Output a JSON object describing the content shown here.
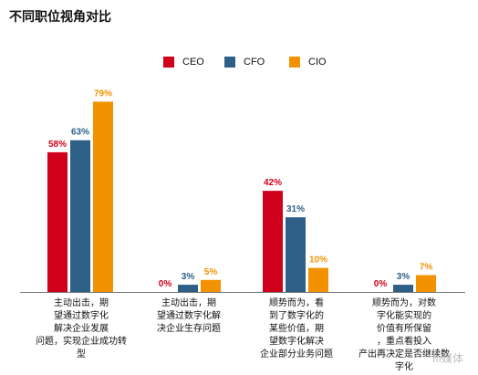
{
  "page_title": "不同职位视角对比",
  "watermark": "iii媒体",
  "chart_data": {
    "type": "bar",
    "title": "",
    "categories": [
      "主动出击，期望通过数字化解决企业发展问题，实现企业成功转型",
      "主动出击，期望通过数字化解决企业生存问题",
      "顺势而为，看到了数字化的某些价值，期望数字化解决企业部分业务问题",
      "顺势而为，对数字化能实现的价值有所保留，重点看投入产出再决定是否继续数字化"
    ],
    "series": [
      {
        "name": "CEO",
        "color": "#d0021b",
        "values": [
          58,
          0,
          42,
          0
        ],
        "labels": [
          "58%",
          "0%",
          "42%",
          "0%"
        ]
      },
      {
        "name": "CFO",
        "color": "#2e5f87",
        "values": [
          63,
          3,
          31,
          3
        ],
        "labels": [
          "63%",
          "3%",
          "31%",
          "3%"
        ]
      },
      {
        "name": "CIO",
        "color": "#f39200",
        "values": [
          79,
          5,
          10,
          7
        ],
        "labels": [
          "79%",
          "5%",
          "10%",
          "7%"
        ]
      }
    ],
    "ylim": [
      0,
      100
    ],
    "grid": false,
    "legend_position": "top-center",
    "xlabel": "",
    "ylabel": ""
  }
}
